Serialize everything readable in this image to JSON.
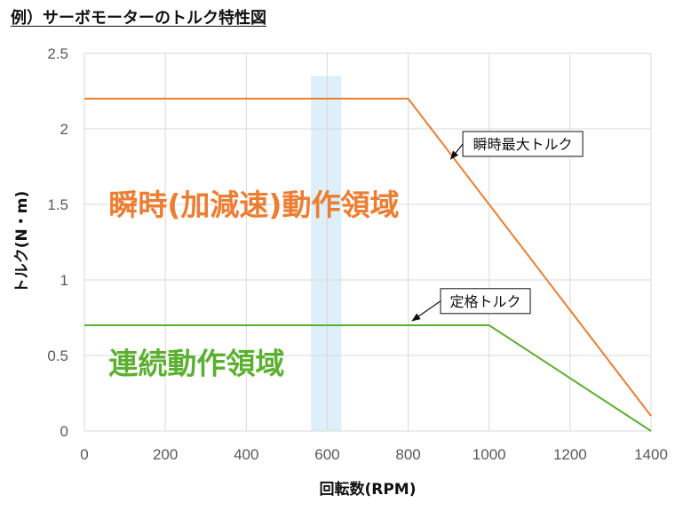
{
  "page": {
    "title": "例）サーボモーターのトルク特性図"
  },
  "chart_data": {
    "type": "line",
    "xlabel": "回転数(RPM)",
    "ylabel": "トルク(N・m)",
    "xlim": [
      0,
      1400
    ],
    "ylim": [
      0,
      2.5
    ],
    "x_ticks": [
      "0",
      "200",
      "400",
      "600",
      "800",
      "1000",
      "1200",
      "1400"
    ],
    "y_ticks": [
      "0",
      "0.5",
      "1",
      "1.5",
      "2",
      "2.5"
    ],
    "grid": true,
    "series": [
      {
        "name": "瞬時最大トルク",
        "color": "#ED7D31",
        "x": [
          0,
          800,
          1400
        ],
        "y": [
          2.2,
          2.2,
          0.1
        ]
      },
      {
        "name": "定格トルク",
        "color": "#5CB02F",
        "x": [
          0,
          1000,
          1400
        ],
        "y": [
          0.7,
          0.7,
          0.0
        ]
      }
    ],
    "highlight_band": {
      "x_start": 560,
      "x_end": 635,
      "y_top": 2.35,
      "color": "#DDEFF8"
    },
    "regions": [
      {
        "text": "瞬時(加減速)動作領域",
        "color": "#ED7D31",
        "x": 60,
        "y": 1.5
      },
      {
        "text": "連続動作領域",
        "color": "#5CB02F",
        "x": 60,
        "y": 0.45
      }
    ],
    "callouts": [
      {
        "text": "瞬時最大トルク",
        "target_x": 905,
        "target_y": 1.8,
        "box_x": 935,
        "box_y": 1.9
      },
      {
        "text": "定格トルク",
        "target_x": 810,
        "target_y": 0.73,
        "box_x": 880,
        "box_y": 0.86
      }
    ]
  }
}
